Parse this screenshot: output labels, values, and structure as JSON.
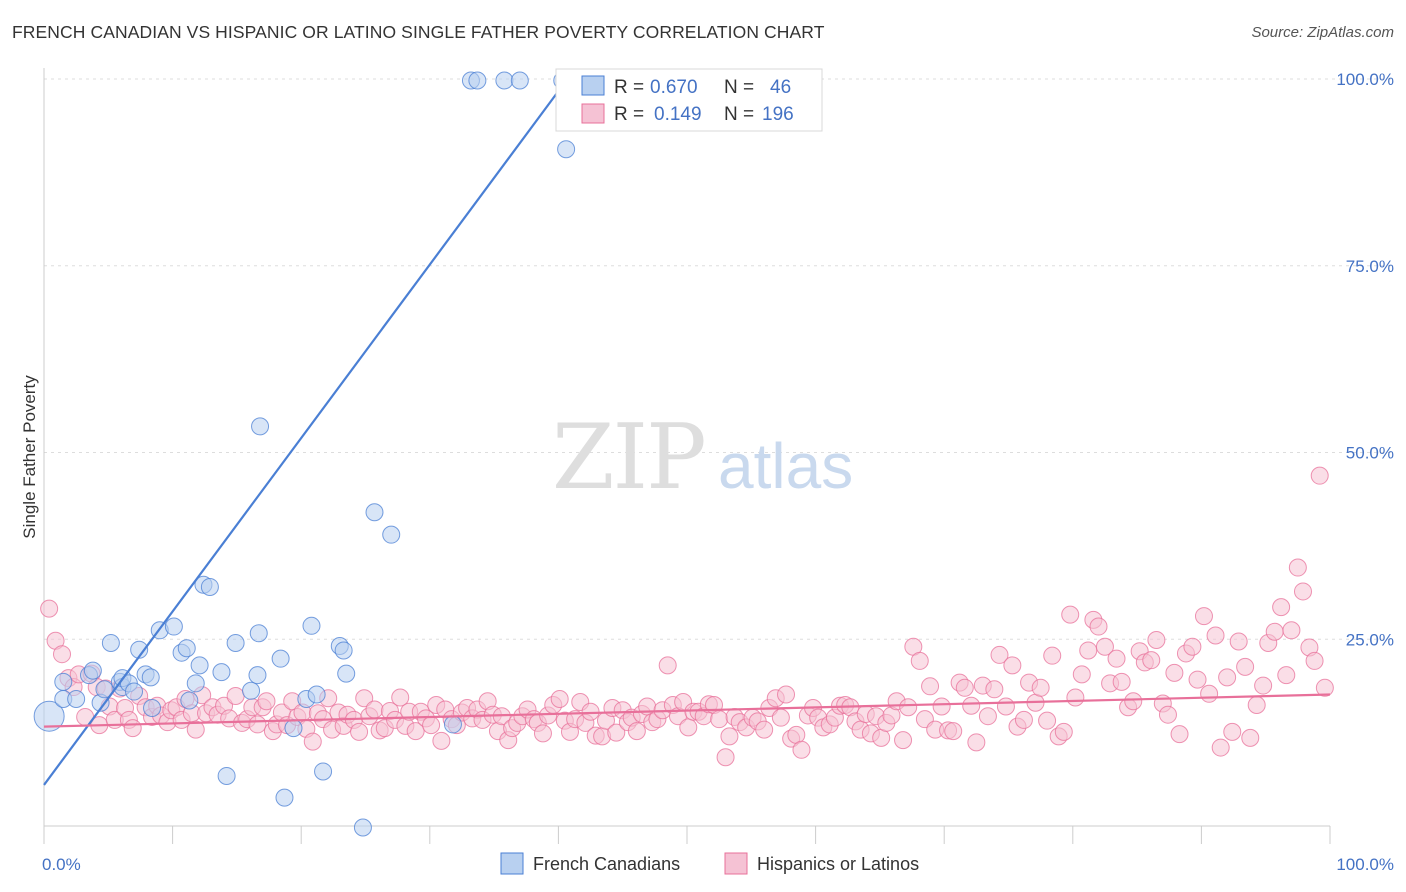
{
  "header": {
    "title": "FRENCH CANADIAN VS HISPANIC OR LATINO SINGLE FATHER POVERTY CORRELATION CHART",
    "source": "Source: ZipAtlas.com"
  },
  "watermark": {
    "zip": "ZIP",
    "atlas": "atlas"
  },
  "colors": {
    "blue": "#4a7fd4",
    "blue_fill": "#b8d0f0",
    "pink": "#e8709a",
    "pink_fill": "#f5c2d4",
    "grid": "#dddddd",
    "tick_text": "#4472c4"
  },
  "legend": {
    "r_label": "R =",
    "n_label": "N =",
    "entries": [
      {
        "r": "0.670",
        "n": "46"
      },
      {
        "r": "0.149",
        "n": "196"
      }
    ]
  },
  "chart_data": {
    "type": "scatter",
    "title": "FRENCH CANADIAN VS HISPANIC OR LATINO SINGLE FATHER POVERTY CORRELATION CHART",
    "ylabel": "Single Father Poverty",
    "xlabel": "",
    "xlim": [
      0,
      100
    ],
    "ylim": [
      0,
      100
    ],
    "x_tick_labels": [
      {
        "value": 0,
        "label": "0.0%"
      },
      {
        "value": 100,
        "label": "100.0%"
      }
    ],
    "y_tick_labels": [
      {
        "value": 25,
        "label": "25.0%"
      },
      {
        "value": 50,
        "label": "50.0%"
      },
      {
        "value": 75,
        "label": "75.0%"
      },
      {
        "value": 100,
        "label": "100.0%"
      }
    ],
    "grid": true,
    "legend_position": "top-center",
    "series": [
      {
        "name": "French Canadians",
        "r": 0.67,
        "n": 46,
        "trend": {
          "x": [
            0,
            40.7
          ],
          "y": [
            5.5,
            100
          ]
        },
        "points": [
          [
            0.4,
            14.7
          ],
          [
            1.5,
            19.3
          ],
          [
            1.5,
            17.0
          ],
          [
            2.5,
            17.0
          ],
          [
            3.5,
            20.2
          ],
          [
            3.8,
            20.8
          ],
          [
            4.4,
            16.5
          ],
          [
            4.7,
            18.3
          ],
          [
            5.2,
            24.5
          ],
          [
            5.9,
            19.3
          ],
          [
            6.1,
            18.6
          ],
          [
            6.1,
            19.8
          ],
          [
            6.6,
            19.1
          ],
          [
            7.0,
            18.0
          ],
          [
            7.4,
            23.6
          ],
          [
            7.9,
            20.3
          ],
          [
            8.3,
            19.9
          ],
          [
            8.4,
            15.8
          ],
          [
            9.0,
            26.2
          ],
          [
            10.1,
            26.7
          ],
          [
            10.7,
            23.2
          ],
          [
            11.1,
            23.8
          ],
          [
            11.3,
            16.8
          ],
          [
            11.8,
            19.1
          ],
          [
            12.1,
            21.5
          ],
          [
            12.4,
            32.3
          ],
          [
            12.9,
            32.0
          ],
          [
            13.8,
            20.6
          ],
          [
            14.2,
            6.7
          ],
          [
            14.9,
            24.5
          ],
          [
            16.1,
            18.1
          ],
          [
            16.6,
            20.2
          ],
          [
            16.7,
            25.8
          ],
          [
            16.8,
            53.5
          ],
          [
            18.4,
            22.4
          ],
          [
            18.7,
            3.8
          ],
          [
            19.4,
            13.1
          ],
          [
            20.4,
            17.0
          ],
          [
            21.2,
            17.6
          ],
          [
            20.8,
            26.8
          ],
          [
            23.0,
            24.1
          ],
          [
            23.3,
            23.5
          ],
          [
            21.7,
            7.3
          ],
          [
            23.5,
            20.4
          ],
          [
            24.8,
            -0.2
          ],
          [
            25.7,
            42.0
          ],
          [
            27.0,
            39.0
          ],
          [
            31.8,
            13.6
          ],
          [
            33.2,
            99.8
          ],
          [
            33.7,
            99.8
          ],
          [
            35.8,
            99.8
          ],
          [
            37.0,
            99.8
          ],
          [
            40.3,
            99.8
          ],
          [
            40.6,
            90.6
          ]
        ]
      },
      {
        "name": "Hispanics or Latinos",
        "r": 0.149,
        "n": 196,
        "trend": {
          "x": [
            0,
            100
          ],
          "y": [
            13.3,
            17.6
          ]
        },
        "points": [
          [
            0.4,
            29.1
          ],
          [
            0.9,
            24.8
          ],
          [
            1.4,
            23.0
          ],
          [
            1.9,
            19.8
          ],
          [
            2.3,
            18.6
          ],
          [
            2.7,
            20.3
          ],
          [
            3.2,
            14.6
          ],
          [
            3.7,
            20.4
          ],
          [
            4.1,
            18.6
          ],
          [
            4.3,
            13.5
          ],
          [
            4.8,
            18.4
          ],
          [
            5.1,
            16.0
          ],
          [
            5.5,
            14.2
          ],
          [
            5.9,
            18.4
          ],
          [
            6.3,
            15.8
          ],
          [
            6.6,
            14.2
          ],
          [
            6.9,
            13.1
          ],
          [
            7.4,
            17.4
          ],
          [
            7.9,
            15.9
          ],
          [
            8.4,
            14.6
          ],
          [
            8.8,
            16.1
          ],
          [
            9.1,
            14.8
          ],
          [
            9.6,
            13.9
          ],
          [
            9.9,
            15.5
          ],
          [
            10.3,
            15.9
          ],
          [
            10.7,
            14.2
          ],
          [
            11.0,
            17.0
          ],
          [
            11.5,
            15.1
          ],
          [
            11.8,
            12.9
          ],
          [
            12.3,
            17.5
          ],
          [
            12.6,
            15.1
          ],
          [
            13.1,
            15.9
          ],
          [
            13.5,
            14.9
          ],
          [
            14.0,
            16.1
          ],
          [
            14.4,
            14.4
          ],
          [
            14.9,
            17.4
          ],
          [
            15.4,
            13.8
          ],
          [
            15.8,
            14.3
          ],
          [
            16.2,
            15.9
          ],
          [
            16.6,
            13.6
          ],
          [
            17.0,
            15.9
          ],
          [
            17.3,
            16.7
          ],
          [
            17.8,
            12.7
          ],
          [
            18.1,
            13.6
          ],
          [
            18.5,
            15.2
          ],
          [
            18.9,
            13.5
          ],
          [
            19.3,
            16.7
          ],
          [
            19.7,
            14.6
          ],
          [
            20.1,
            15.2
          ],
          [
            20.4,
            13.0
          ],
          [
            20.9,
            11.3
          ],
          [
            21.3,
            15.1
          ],
          [
            21.7,
            14.3
          ],
          [
            22.1,
            17.1
          ],
          [
            22.4,
            12.9
          ],
          [
            22.9,
            15.2
          ],
          [
            23.3,
            13.4
          ],
          [
            23.6,
            14.9
          ],
          [
            24.1,
            14.2
          ],
          [
            24.5,
            12.6
          ],
          [
            24.9,
            17.1
          ],
          [
            25.3,
            14.7
          ],
          [
            25.7,
            15.6
          ],
          [
            26.1,
            12.8
          ],
          [
            26.5,
            13.1
          ],
          [
            26.9,
            15.4
          ],
          [
            27.3,
            14.2
          ],
          [
            27.7,
            17.2
          ],
          [
            28.1,
            13.4
          ],
          [
            28.4,
            15.3
          ],
          [
            28.9,
            12.7
          ],
          [
            29.3,
            15.3
          ],
          [
            29.7,
            14.4
          ],
          [
            30.1,
            13.5
          ],
          [
            30.5,
            16.2
          ],
          [
            30.9,
            11.4
          ],
          [
            31.2,
            15.6
          ],
          [
            31.7,
            14.3
          ],
          [
            32.1,
            13.5
          ],
          [
            32.5,
            15.2
          ],
          [
            32.9,
            15.8
          ],
          [
            33.3,
            14.4
          ],
          [
            33.7,
            15.6
          ],
          [
            34.1,
            14.2
          ],
          [
            34.5,
            16.7
          ],
          [
            34.9,
            14.9
          ],
          [
            35.3,
            12.7
          ],
          [
            35.6,
            14.7
          ],
          [
            36.1,
            11.5
          ],
          [
            36.4,
            13.1
          ],
          [
            36.8,
            13.8
          ],
          [
            37.2,
            14.7
          ],
          [
            37.6,
            15.6
          ],
          [
            38.1,
            14.3
          ],
          [
            38.4,
            13.8
          ],
          [
            38.8,
            12.4
          ],
          [
            39.2,
            14.8
          ],
          [
            39.6,
            16.2
          ],
          [
            40.1,
            17.0
          ],
          [
            40.5,
            14.1
          ],
          [
            40.9,
            12.6
          ],
          [
            41.3,
            14.3
          ],
          [
            41.7,
            16.6
          ],
          [
            42.1,
            13.8
          ],
          [
            42.5,
            15.3
          ],
          [
            42.9,
            12.1
          ],
          [
            43.4,
            12.0
          ],
          [
            43.7,
            14.1
          ],
          [
            44.2,
            15.8
          ],
          [
            44.5,
            12.5
          ],
          [
            45.0,
            15.5
          ],
          [
            45.4,
            13.9
          ],
          [
            45.7,
            14.5
          ],
          [
            46.1,
            12.7
          ],
          [
            46.5,
            15.0
          ],
          [
            46.9,
            16.0
          ],
          [
            47.3,
            13.9
          ],
          [
            47.7,
            14.3
          ],
          [
            48.1,
            15.5
          ],
          [
            48.5,
            21.5
          ],
          [
            48.9,
            16.2
          ],
          [
            49.3,
            14.7
          ],
          [
            49.7,
            16.6
          ],
          [
            50.1,
            13.2
          ],
          [
            50.5,
            15.3
          ],
          [
            50.9,
            15.3
          ],
          [
            51.3,
            14.7
          ],
          [
            51.7,
            16.3
          ],
          [
            52.1,
            16.2
          ],
          [
            52.5,
            14.3
          ],
          [
            53.0,
            9.2
          ],
          [
            53.3,
            12.0
          ],
          [
            53.7,
            14.6
          ],
          [
            54.1,
            13.9
          ],
          [
            54.6,
            13.2
          ],
          [
            55.1,
            14.5
          ],
          [
            55.5,
            14.0
          ],
          [
            56.0,
            12.9
          ],
          [
            56.4,
            15.8
          ],
          [
            56.9,
            17.1
          ],
          [
            57.3,
            14.5
          ],
          [
            57.7,
            17.6
          ],
          [
            58.1,
            11.7
          ],
          [
            58.5,
            12.2
          ],
          [
            58.9,
            10.2
          ],
          [
            59.4,
            14.8
          ],
          [
            59.8,
            15.8
          ],
          [
            60.2,
            14.5
          ],
          [
            60.6,
            13.2
          ],
          [
            61.1,
            13.6
          ],
          [
            61.5,
            14.5
          ],
          [
            61.9,
            16.1
          ],
          [
            62.3,
            16.2
          ],
          [
            62.7,
            15.9
          ],
          [
            63.1,
            14.0
          ],
          [
            63.5,
            12.9
          ],
          [
            63.9,
            15.0
          ],
          [
            64.3,
            12.4
          ],
          [
            64.7,
            14.7
          ],
          [
            65.1,
            11.8
          ],
          [
            65.5,
            13.8
          ],
          [
            65.9,
            14.8
          ],
          [
            66.3,
            16.7
          ],
          [
            66.8,
            11.5
          ],
          [
            67.2,
            15.9
          ],
          [
            67.6,
            24.0
          ],
          [
            68.1,
            22.1
          ],
          [
            68.5,
            14.3
          ],
          [
            68.9,
            18.7
          ],
          [
            69.3,
            12.9
          ],
          [
            69.8,
            16.0
          ],
          [
            70.3,
            12.8
          ],
          [
            70.7,
            12.7
          ],
          [
            71.2,
            19.2
          ],
          [
            71.6,
            18.5
          ],
          [
            72.1,
            16.1
          ],
          [
            72.5,
            11.2
          ],
          [
            73.0,
            18.8
          ],
          [
            73.4,
            14.7
          ],
          [
            73.9,
            18.3
          ],
          [
            74.3,
            22.9
          ],
          [
            74.8,
            16.0
          ],
          [
            75.3,
            21.5
          ],
          [
            75.7,
            13.3
          ],
          [
            76.2,
            14.2
          ],
          [
            76.6,
            19.2
          ],
          [
            77.1,
            16.5
          ],
          [
            77.5,
            18.5
          ],
          [
            78.0,
            14.1
          ],
          [
            78.4,
            22.8
          ],
          [
            78.9,
            12.0
          ],
          [
            79.3,
            12.6
          ],
          [
            79.8,
            28.3
          ],
          [
            80.2,
            17.2
          ],
          [
            80.7,
            20.3
          ],
          [
            81.2,
            23.5
          ],
          [
            81.6,
            27.6
          ],
          [
            82.0,
            26.7
          ],
          [
            82.5,
            24.0
          ],
          [
            82.9,
            19.1
          ],
          [
            83.4,
            22.4
          ],
          [
            83.8,
            19.3
          ],
          [
            84.3,
            15.9
          ],
          [
            84.7,
            16.7
          ],
          [
            85.2,
            23.4
          ],
          [
            85.6,
            21.9
          ],
          [
            86.1,
            22.2
          ],
          [
            86.5,
            24.9
          ],
          [
            87.0,
            16.4
          ],
          [
            87.4,
            14.9
          ],
          [
            87.9,
            20.5
          ],
          [
            88.3,
            12.3
          ],
          [
            88.8,
            23.1
          ],
          [
            89.3,
            24.0
          ],
          [
            89.7,
            19.6
          ],
          [
            90.2,
            28.1
          ],
          [
            90.6,
            17.7
          ],
          [
            91.1,
            25.5
          ],
          [
            91.5,
            10.5
          ],
          [
            92.0,
            19.9
          ],
          [
            92.4,
            12.6
          ],
          [
            92.9,
            24.7
          ],
          [
            93.4,
            21.3
          ],
          [
            93.8,
            11.8
          ],
          [
            94.3,
            16.2
          ],
          [
            94.8,
            18.8
          ],
          [
            95.2,
            24.5
          ],
          [
            95.7,
            26.0
          ],
          [
            96.2,
            29.3
          ],
          [
            96.6,
            20.2
          ],
          [
            97.0,
            26.2
          ],
          [
            97.5,
            34.6
          ],
          [
            97.9,
            31.4
          ],
          [
            98.4,
            23.9
          ],
          [
            98.8,
            22.1
          ],
          [
            99.2,
            46.9
          ],
          [
            99.6,
            18.5
          ]
        ]
      }
    ]
  },
  "bottom_legend": {
    "items": [
      "French Canadians",
      "Hispanics or Latinos"
    ]
  }
}
